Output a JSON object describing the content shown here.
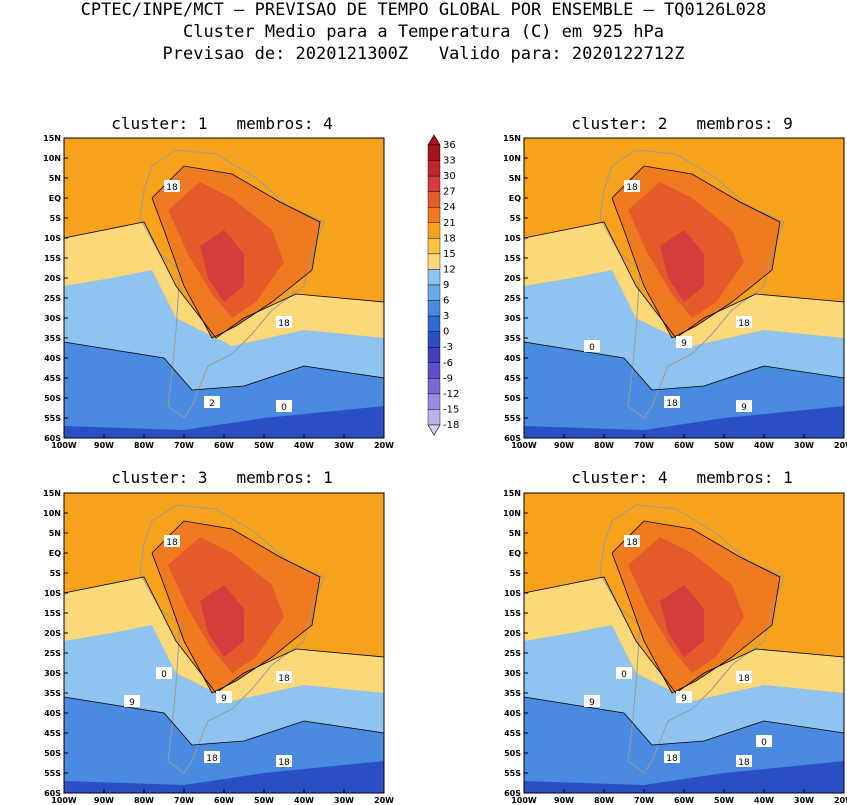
{
  "header": {
    "line1": "CPTEC/INPE/MCT – PREVISAO DE TEMPO GLOBAL POR ENSEMBLE – TQ0126L028",
    "line2": "Cluster Medio para a Temperatura (C) em 925 hPa",
    "line3": "Previsao de: 2020121300Z   Valido para: 2020122712Z"
  },
  "axes": {
    "lat_labels": [
      "15N",
      "10N",
      "5N",
      "EQ",
      "5S",
      "10S",
      "15S",
      "20S",
      "25S",
      "30S",
      "35S",
      "40S",
      "45S",
      "50S",
      "55S",
      "60S"
    ],
    "lon_labels": [
      "100W",
      "90W",
      "80W",
      "70W",
      "60W",
      "50W",
      "40W",
      "30W",
      "20W"
    ],
    "lon_range": [
      -100,
      -20
    ],
    "lat_range": [
      -60,
      15
    ]
  },
  "panels": [
    {
      "title": "cluster: 1   membros: 4",
      "contour_labels": [
        "18",
        "18",
        "2",
        "0"
      ]
    },
    {
      "title": "cluster: 2   membros: 9",
      "contour_labels": [
        "18",
        "18",
        "18",
        "9",
        "9",
        "0"
      ]
    },
    {
      "title": "cluster: 3   membros: 1",
      "contour_labels": [
        "18",
        "18",
        "18",
        "18",
        "9",
        "9",
        "0"
      ]
    },
    {
      "title": "cluster: 4   membros: 1",
      "contour_labels": [
        "18",
        "18",
        "18",
        "18",
        "9",
        "9",
        "0",
        "0"
      ]
    }
  ],
  "colorbar": {
    "labels": [
      "36",
      "33",
      "30",
      "27",
      "24",
      "21",
      "18",
      "15",
      "12",
      "9",
      "6",
      "3",
      "0",
      "-3",
      "-6",
      "-9",
      "-12",
      "-15",
      "-18"
    ],
    "colors": [
      "#a5141a",
      "#c0262b",
      "#d53c3c",
      "#e45a2a",
      "#f07a20",
      "#f7a21c",
      "#f9c243",
      "#fbd878",
      "#8fc3f0",
      "#6aa9ea",
      "#4a8ae0",
      "#2f6bd4",
      "#2a4fc4",
      "#3f3fbc",
      "#5a50c8",
      "#7a6ad4",
      "#9a8ce0",
      "#bcb2ec"
    ]
  }
}
